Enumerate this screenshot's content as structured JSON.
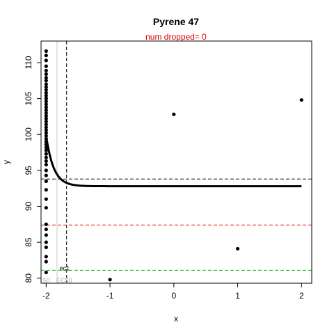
{
  "chart_data": {
    "type": "scatter",
    "title": "Pyrene 47",
    "subtitle": "num dropped= 0",
    "xlabel": "x",
    "ylabel": "y",
    "xlim": [
      -2.08,
      2.16
    ],
    "ylim": [
      79.3,
      113.0
    ],
    "x_ticks": [
      -2,
      -1,
      0,
      1,
      2
    ],
    "y_ticks": [
      80,
      85,
      90,
      95,
      100,
      105,
      110
    ],
    "grid": false,
    "points_at_min": [
      111.6,
      111.0,
      110.3,
      109.5,
      108.9,
      108.4,
      107.9,
      107.5,
      107.0,
      106.6,
      106.2,
      105.8,
      105.4,
      105.0,
      104.6,
      104.2,
      103.8,
      103.4,
      103.0,
      102.6,
      102.2,
      101.8,
      101.4,
      101.0,
      100.6,
      100.2,
      99.8,
      99.4,
      99.0,
      98.6,
      98.2,
      97.8,
      97.3,
      96.8,
      96.3,
      95.8,
      95.0,
      94.3,
      93.5,
      92.3,
      91.0,
      89.8,
      87.5,
      86.8,
      86.0,
      85.0,
      84.3,
      83.0,
      82.3,
      80.8
    ],
    "points_other": [
      {
        "x": -1,
        "y": 79.8
      },
      {
        "x": 0,
        "y": 102.8
      },
      {
        "x": 1,
        "y": 84.1
      },
      {
        "x": 2,
        "y": 104.8
      }
    ],
    "fit_curve": {
      "asymptote": 92.8,
      "start_x": -2.0,
      "start_y": 99.8,
      "rate": 8.5
    },
    "hlines": [
      {
        "y": 93.8,
        "color": "#000000",
        "style": "dashed"
      },
      {
        "y": 87.4,
        "color": "#e00000",
        "style": "dashed"
      },
      {
        "y": 81.1,
        "color": "#00b000",
        "style": "dashed"
      }
    ],
    "vlines": [
      {
        "x": -1.68,
        "color": "#000000",
        "style": "dashed"
      },
      {
        "x": -1.83,
        "color": "#c8c8c8",
        "style": "solid"
      }
    ],
    "annotations": [
      {
        "text": "ec1",
        "x": -1.79,
        "y": 81.1,
        "color": "#000000"
      },
      {
        "text": "50",
        "x": -2.05,
        "y": 79.4,
        "color": "#b0b0b0"
      },
      {
        "text": "EC90",
        "x": -1.84,
        "y": 79.4,
        "color": "#b0b0b0"
      }
    ]
  }
}
